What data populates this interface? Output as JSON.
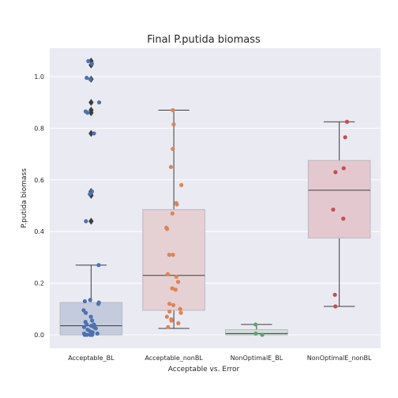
{
  "chart_data": {
    "type": "box",
    "title": "Final P.putida biomass",
    "xlabel": "Acceptable vs. Error",
    "ylabel": "P.putida biomass",
    "categories": [
      "Acceptable_BL",
      "Acceptable_nonBL",
      "NonOptimalE_BL",
      "NonOptimalE_nonBL"
    ],
    "ylim": [
      -0.05,
      1.11
    ],
    "yticks": [
      "0.0",
      "0.2",
      "0.4",
      "0.6",
      "0.8",
      "1.0"
    ],
    "ytick_values": [
      0.0,
      0.2,
      0.4,
      0.6,
      0.8,
      1.0
    ],
    "grid": true,
    "colors": {
      "background": "#eaeaf2",
      "grid": "#ffffff",
      "box_fills": [
        "#c4cbdd",
        "#e5d0d3",
        "#cfe0d6",
        "#e4c8cf"
      ],
      "point_colors": [
        "#4c72b0",
        "#dd8452",
        "#55a868",
        "#c44e52"
      ],
      "lines": "#3d3d3d",
      "outlier": "#3d3d3d"
    },
    "boxes": [
      {
        "q1": 0.0,
        "median": 0.035,
        "q3": 0.125,
        "whisker_low": 0.0,
        "whisker_high": 0.27,
        "outliers": [
          0.44,
          0.54,
          0.555,
          0.78,
          0.86,
          0.87,
          0.9,
          0.99,
          1.045,
          1.06
        ]
      },
      {
        "q1": 0.095,
        "median": 0.23,
        "q3": 0.485,
        "whisker_low": 0.025,
        "whisker_high": 0.87,
        "outliers": []
      },
      {
        "q1": 0.0,
        "median": 0.005,
        "q3": 0.02,
        "whisker_low": 0.0,
        "whisker_high": 0.04,
        "outliers": []
      },
      {
        "q1": 0.375,
        "median": 0.56,
        "q3": 0.675,
        "whisker_low": 0.11,
        "whisker_high": 0.825,
        "outliers": []
      }
    ],
    "points": [
      [
        0.0,
        0.0,
        0.0,
        0.0,
        0.0,
        0.0,
        0.005,
        0.005,
        0.01,
        0.015,
        0.02,
        0.025,
        0.03,
        0.03,
        0.035,
        0.04,
        0.04,
        0.05,
        0.055,
        0.07,
        0.085,
        0.095,
        0.12,
        0.125,
        0.13,
        0.135,
        0.27,
        0.44,
        0.545,
        0.555,
        0.78,
        0.86,
        0.865,
        0.9,
        0.99,
        0.995,
        1.05,
        1.06
      ],
      [
        0.03,
        0.045,
        0.055,
        0.06,
        0.07,
        0.085,
        0.09,
        0.1,
        0.115,
        0.12,
        0.175,
        0.18,
        0.205,
        0.225,
        0.235,
        0.31,
        0.31,
        0.41,
        0.415,
        0.47,
        0.505,
        0.51,
        0.58,
        0.65,
        0.72,
        0.815,
        0.87
      ],
      [
        0.0,
        0.005,
        0.04
      ],
      [
        0.11,
        0.155,
        0.45,
        0.485,
        0.63,
        0.645,
        0.765,
        0.825
      ]
    ]
  }
}
